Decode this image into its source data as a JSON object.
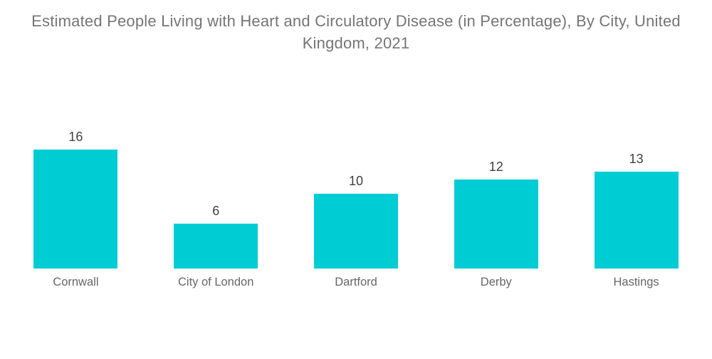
{
  "chart_data": {
    "type": "bar",
    "title": "Estimated People Living with Heart and Circulatory Disease (in Percentage), By City, United Kingdom, 2021",
    "categories": [
      "Cornwall",
      "City of London",
      "Dartford",
      "Derby",
      "Hastings"
    ],
    "values": [
      16,
      6,
      10,
      12,
      13
    ],
    "xlabel": "",
    "ylabel": "",
    "ylim": [
      0,
      16
    ],
    "grid": false,
    "legend": false,
    "bar_color": "#00CCD4",
    "value_label_color": "#404040",
    "category_label_color": "#666666",
    "title_color": "#757575",
    "background_color": "#FFFFFF"
  }
}
